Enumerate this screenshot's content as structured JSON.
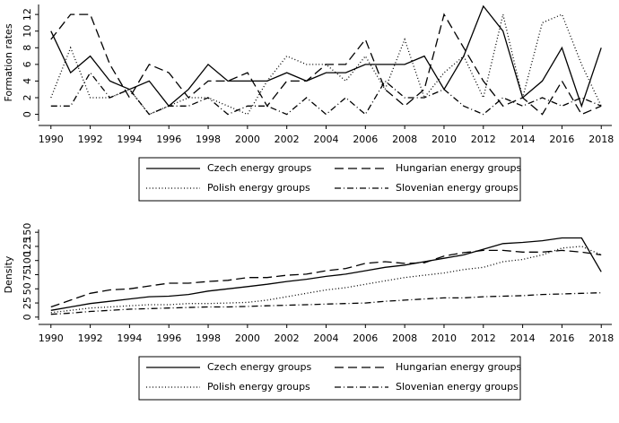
{
  "chart_data": [
    {
      "type": "line",
      "y_label": "Formation rates",
      "x": [
        1990,
        1991,
        1992,
        1993,
        1994,
        1995,
        1996,
        1997,
        1998,
        1999,
        2000,
        2001,
        2002,
        2003,
        2004,
        2005,
        2006,
        2007,
        2008,
        2009,
        2010,
        2011,
        2012,
        2013,
        2014,
        2015,
        2016,
        2017,
        2018
      ],
      "xlim": [
        1989.6,
        2018.4
      ],
      "xticks": [
        1990,
        1992,
        1994,
        1996,
        1998,
        2000,
        2002,
        2004,
        2006,
        2008,
        2010,
        2012,
        2014,
        2016,
        2018
      ],
      "ylim": [
        -0.8,
        13.2
      ],
      "yticks": [
        0,
        2,
        4,
        6,
        8,
        10,
        12
      ],
      "series": [
        {
          "name": "Czech energy groups",
          "color": "#000000",
          "line_style": "solid",
          "values": [
            10,
            5,
            7,
            4,
            3,
            4,
            1,
            3,
            6,
            4,
            4,
            4,
            5,
            4,
            5,
            5,
            6,
            6,
            6,
            7,
            3,
            7,
            13,
            10,
            2,
            4,
            8,
            1,
            8
          ]
        },
        {
          "name": "Hungarian energy groups",
          "color": "#000000",
          "line_style": "dashed",
          "values": [
            9,
            12,
            12,
            6,
            2,
            6,
            5,
            2,
            4,
            4,
            5,
            1,
            4,
            4,
            6,
            6,
            9,
            3,
            1,
            3,
            12,
            8,
            4,
            1,
            2,
            0,
            4,
            0,
            1
          ]
        },
        {
          "name": "Polish energy groups",
          "color": "#000000",
          "line_style": "dotted",
          "values": [
            2,
            8,
            2,
            2,
            3,
            0,
            1,
            2,
            2,
            1,
            0,
            4,
            7,
            6,
            6,
            4,
            7,
            3,
            9,
            2,
            5,
            7,
            2,
            12,
            2,
            11,
            12,
            6,
            1
          ]
        },
        {
          "name": "Slovenian energy groups",
          "color": "#000000",
          "line_style": "dashdot",
          "values": [
            1,
            1,
            5,
            2,
            3,
            0,
            1,
            1,
            2,
            0,
            1,
            1,
            0,
            2,
            0,
            2,
            0,
            4,
            2,
            2,
            3,
            1,
            0,
            2,
            1,
            2,
            1,
            2,
            1
          ]
        }
      ]
    },
    {
      "type": "line",
      "y_label": "Density",
      "x": [
        1990,
        1991,
        1992,
        1993,
        1994,
        1995,
        1996,
        1997,
        1998,
        1999,
        2000,
        2001,
        2002,
        2003,
        2004,
        2005,
        2006,
        2007,
        2008,
        2009,
        2010,
        2011,
        2012,
        2013,
        2014,
        2015,
        2016,
        2017,
        2018
      ],
      "xlim": [
        1989.6,
        2018.4
      ],
      "xticks": [
        1990,
        1992,
        1994,
        1996,
        1998,
        2000,
        2002,
        2004,
        2006,
        2008,
        2010,
        2012,
        2014,
        2016,
        2018
      ],
      "ylim": [
        -5,
        155
      ],
      "yticks": [
        0,
        25,
        50,
        75,
        100,
        125,
        150
      ],
      "series": [
        {
          "name": "Czech energy groups",
          "color": "#000000",
          "line_style": "solid",
          "values": [
            12,
            18,
            24,
            28,
            32,
            36,
            37,
            40,
            46,
            50,
            54,
            58,
            63,
            67,
            72,
            76,
            82,
            88,
            92,
            98,
            104,
            110,
            120,
            130,
            132,
            135,
            140,
            140,
            80
          ]
        },
        {
          "name": "Hungarian energy groups",
          "color": "#000000",
          "line_style": "dashed",
          "values": [
            18,
            30,
            42,
            48,
            50,
            55,
            60,
            60,
            63,
            65,
            70,
            70,
            74,
            76,
            82,
            86,
            95,
            98,
            95,
            96,
            108,
            114,
            118,
            118,
            115,
            115,
            118,
            115,
            110
          ]
        },
        {
          "name": "Polish energy groups",
          "color": "#000000",
          "line_style": "dotted",
          "values": [
            8,
            12,
            16,
            18,
            20,
            22,
            22,
            24,
            24,
            25,
            26,
            30,
            36,
            42,
            48,
            52,
            58,
            64,
            70,
            74,
            78,
            84,
            88,
            98,
            102,
            110,
            122,
            125,
            110
          ]
        },
        {
          "name": "Slovenian energy groups",
          "color": "#000000",
          "line_style": "dashdot",
          "values": [
            5,
            7,
            10,
            12,
            14,
            15,
            16,
            17,
            18,
            18,
            19,
            20,
            21,
            22,
            23,
            24,
            25,
            28,
            30,
            32,
            34,
            34,
            36,
            37,
            38,
            40,
            41,
            42,
            43
          ]
        }
      ]
    }
  ]
}
